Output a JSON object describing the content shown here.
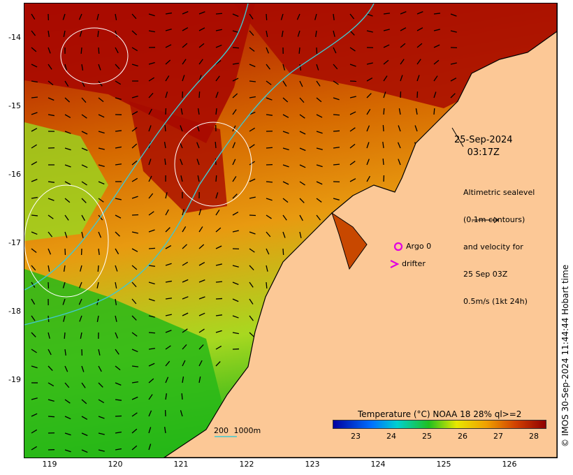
{
  "map": {
    "date": "25-Sep-2024",
    "time": "03:17Z",
    "altimetry_lines": [
      "Altimetric sealevel",
      "(0.1m contours)",
      "and velocity for",
      "25 Sep 03Z",
      "0.5m/s (1kt 24h)"
    ],
    "legend": {
      "argo": "Argo 0",
      "drifter": "drifter"
    },
    "scalebar": {
      "label_a": "200",
      "label_b": "1000m"
    },
    "colorbar": {
      "title": "Temperature (°C) NOAA 18 28% ql>=2",
      "ticks": [
        "23",
        "24",
        "25",
        "26",
        "27",
        "28"
      ]
    },
    "credit": "© IMOS 30-Sep-2024 11:44:44 Hobart time",
    "y_ticks": [
      "-14",
      "-15",
      "-16",
      "-17",
      "-18",
      "-19"
    ],
    "x_ticks": [
      "119",
      "120",
      "121",
      "122",
      "123",
      "124",
      "125",
      "126"
    ],
    "colors": {
      "land": "#fcc896",
      "cold": "#10b010",
      "warm": "#a40000",
      "contour": "#40c8d0",
      "argo": "#e000e0"
    }
  }
}
